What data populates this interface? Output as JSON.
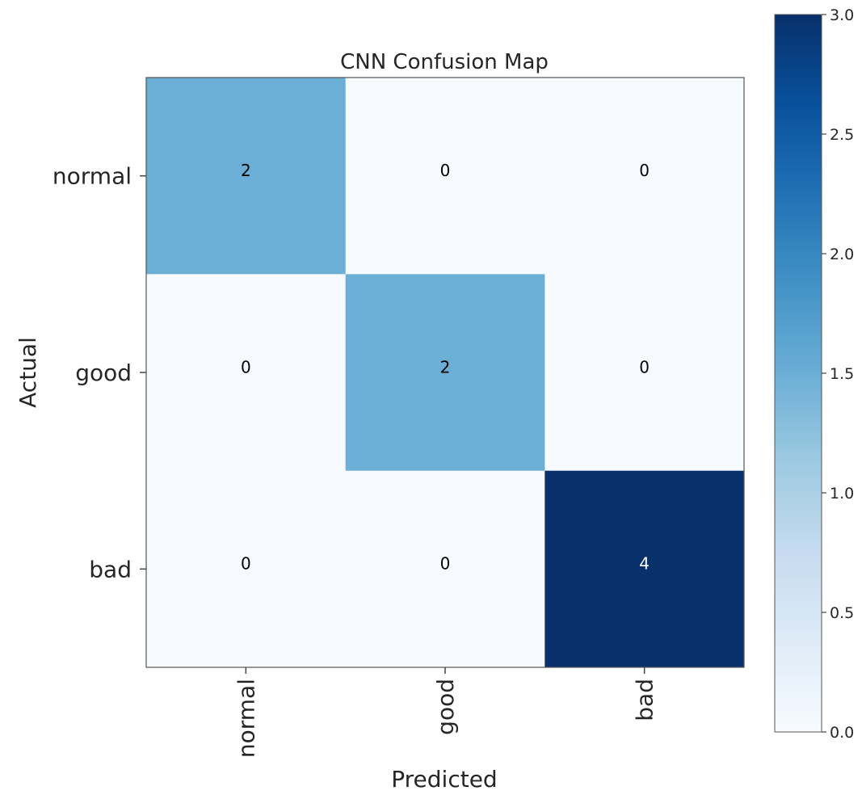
{
  "chart_data": {
    "type": "heatmap",
    "title": "CNN Confusion Map",
    "xlabel": "Predicted",
    "ylabel": "Actual",
    "x_categories": [
      "normal",
      "good",
      "bad"
    ],
    "y_categories": [
      "normal",
      "good",
      "bad"
    ],
    "values": [
      [
        2,
        0,
        0
      ],
      [
        0,
        2,
        0
      ],
      [
        0,
        0,
        4
      ]
    ],
    "colorbar": {
      "range": [
        0.0,
        3.0
      ],
      "ticks": [
        0.0,
        0.5,
        1.0,
        1.5,
        2.0,
        2.5,
        3.0
      ],
      "tick_labels": [
        "0.0",
        "0.5",
        "1.0",
        "1.5",
        "2.0",
        "2.5",
        "3.0"
      ]
    },
    "colormap": "Blues",
    "grid": false
  }
}
